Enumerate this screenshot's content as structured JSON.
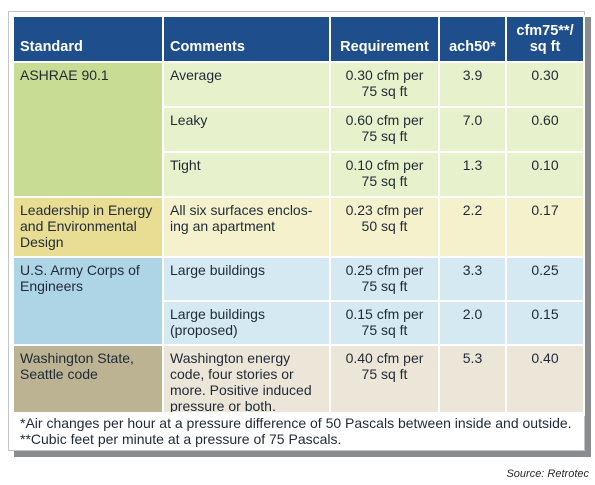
{
  "headers": {
    "standard": "Standard",
    "comments": "Comments",
    "requirement": "Requirement",
    "ach50": "ach50*",
    "cfm75": "cfm75**/ sq ft"
  },
  "rows": {
    "ashrae": {
      "standard": "ASHRAE 90.1",
      "entries": [
        {
          "comment": "Average",
          "requirement": "0.30 cfm per 75 sq ft",
          "ach50": "3.9",
          "cfm75": "0.30"
        },
        {
          "comment": "Leaky",
          "requirement": "0.60 cfm per 75 sq ft",
          "ach50": "7.0",
          "cfm75": "0.60"
        },
        {
          "comment": "Tight",
          "requirement": "0.10 cfm per 75 sq ft",
          "ach50": "1.3",
          "cfm75": "0.10"
        }
      ]
    },
    "leed": {
      "standard": "Leadership in Energy and Environmental Design",
      "entries": [
        {
          "comment": "All six surfaces enclos-ing an apartment",
          "requirement": "0.23 cfm per 50 sq ft",
          "ach50": "2.2",
          "cfm75": "0.17"
        }
      ]
    },
    "army": {
      "standard": "U.S. Army Corps of Engineers",
      "entries": [
        {
          "comment": "Large buildings",
          "requirement": "0.25 cfm per 75 sq ft",
          "ach50": "3.3",
          "cfm75": "0.25"
        },
        {
          "comment": "Large buildings (proposed)",
          "requirement": "0.15 cfm per 75 sq ft",
          "ach50": "2.0",
          "cfm75": "0.15"
        }
      ]
    },
    "washington": {
      "standard": "Washington State, Seattle code",
      "entries": [
        {
          "comment": "Washington energy code, four stories or more. Positive induced pressure or both.",
          "requirement": "0.40 cfm per 75 sq ft",
          "ach50": "5.3",
          "cfm75": "0.40"
        }
      ]
    }
  },
  "footnotes": [
    "*Air changes per hour at a pressure difference of 50 Pascals between inside and outside.",
    "**Cubic feet per minute at a pressure of 75 Pascals."
  ],
  "source": "Source: Retrotec",
  "colors": {
    "header": "#1e4e8c",
    "ashrae_band": "#c9dc93",
    "leed_band": "#e8dd92",
    "army_band": "#aed5e6",
    "washington_band": "#bcb392"
  }
}
